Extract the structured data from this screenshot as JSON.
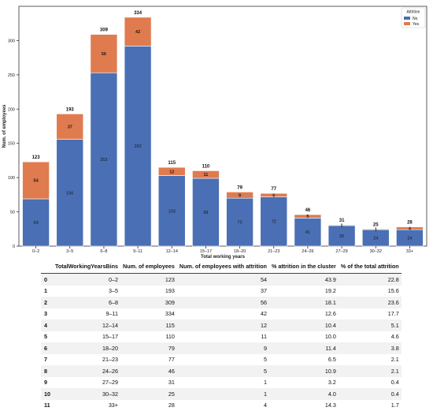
{
  "chart_data": {
    "type": "bar",
    "stacked": true,
    "xlabel": "Total working years",
    "ylabel": "Num. of employees",
    "ylim": [
      0,
      350
    ],
    "yticks": [
      0,
      50,
      100,
      150,
      200,
      250,
      300
    ],
    "categories": [
      "0–2",
      "3–5",
      "6–8",
      "9–11",
      "12–14",
      "15–17",
      "18–20",
      "21–23",
      "24–26",
      "27–29",
      "30–32",
      "33+"
    ],
    "series": [
      {
        "name": "No",
        "color": "#4a6fb5",
        "values": [
          69,
          156,
          253,
          292,
          103,
          99,
          70,
          72,
          41,
          30,
          24,
          24
        ]
      },
      {
        "name": "Yes",
        "color": "#e07b4f",
        "values": [
          54,
          37,
          56,
          42,
          12,
          11,
          9,
          5,
          5,
          1,
          1,
          4
        ]
      }
    ],
    "totals": [
      123,
      193,
      309,
      334,
      115,
      110,
      79,
      77,
      46,
      31,
      25,
      28
    ],
    "legend": {
      "title": "Attrition",
      "position": "top-right"
    },
    "grid": false
  },
  "table": {
    "columns": [
      "",
      "TotalWorkingYearsBins",
      "Num. of employees",
      "Num. of employees with attrition",
      "% attrition in the cluster",
      "% of the total attrition"
    ],
    "rows": [
      [
        "0",
        "0–2",
        "123",
        "54",
        "43.9",
        "22.8"
      ],
      [
        "1",
        "3–5",
        "193",
        "37",
        "19.2",
        "15.6"
      ],
      [
        "2",
        "6–8",
        "309",
        "56",
        "18.1",
        "23.6"
      ],
      [
        "3",
        "9–11",
        "334",
        "42",
        "12.6",
        "17.7"
      ],
      [
        "4",
        "12–14",
        "115",
        "12",
        "10.4",
        "5.1"
      ],
      [
        "5",
        "15–17",
        "110",
        "11",
        "10.0",
        "4.6"
      ],
      [
        "6",
        "18–20",
        "79",
        "9",
        "11.4",
        "3.8"
      ],
      [
        "7",
        "21–23",
        "77",
        "5",
        "6.5",
        "2.1"
      ],
      [
        "8",
        "24–26",
        "46",
        "5",
        "10.9",
        "2.1"
      ],
      [
        "9",
        "27–29",
        "31",
        "1",
        "3.2",
        "0.4"
      ],
      [
        "10",
        "30–32",
        "25",
        "1",
        "4.0",
        "0.4"
      ],
      [
        "11",
        "33+",
        "28",
        "4",
        "14.3",
        "1.7"
      ]
    ]
  }
}
